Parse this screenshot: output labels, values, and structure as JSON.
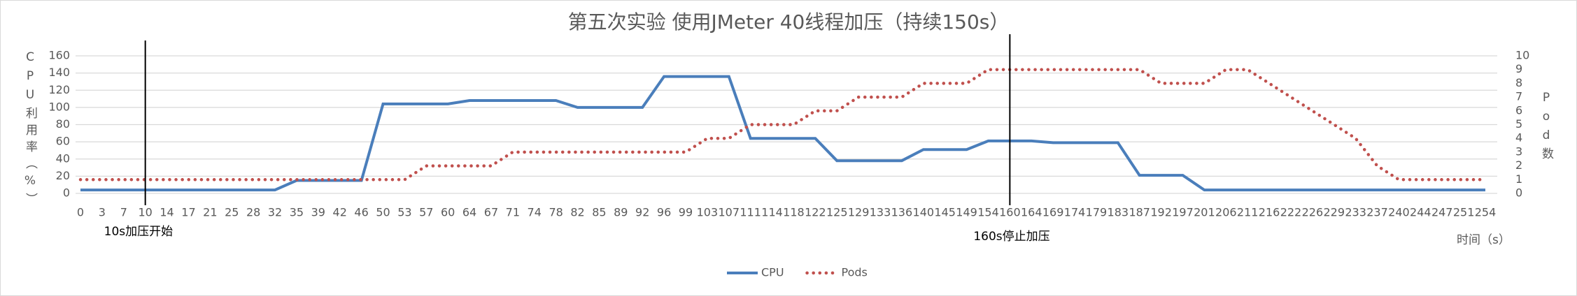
{
  "chart_data": {
    "type": "line",
    "title": "第五次实验 使用JMeter 40线程加压（持续150s）",
    "y_label": "CPU利用率（%）",
    "y2_label": "Pod数",
    "x_label": "时间（s）",
    "categories": [
      "0",
      "3",
      "7",
      "10",
      "14",
      "17",
      "21",
      "25",
      "28",
      "32",
      "35",
      "39",
      "42",
      "46",
      "50",
      "53",
      "57",
      "60",
      "64",
      "67",
      "71",
      "74",
      "78",
      "82",
      "85",
      "89",
      "92",
      "96",
      "99",
      "103",
      "107",
      "111",
      "114",
      "118",
      "122",
      "125",
      "129",
      "133",
      "136",
      "140",
      "145",
      "149",
      "154",
      "160",
      "164",
      "169",
      "174",
      "179",
      "183",
      "187",
      "192",
      "197",
      "201",
      "206",
      "211",
      "216",
      "222",
      "226",
      "229",
      "233",
      "237",
      "240",
      "244",
      "247",
      "251",
      "254"
    ],
    "series": [
      {
        "name": "CPU",
        "color": "#4a7ebb",
        "values": [
          4,
          4,
          4,
          4,
          4,
          4,
          4,
          4,
          4,
          4,
          15,
          15,
          15,
          15,
          104,
          104,
          104,
          104,
          108,
          108,
          108,
          108,
          108,
          100,
          100,
          100,
          100,
          136,
          136,
          136,
          136,
          64,
          64,
          64,
          64,
          38,
          38,
          38,
          38,
          51,
          51,
          51,
          61,
          61,
          61,
          59,
          59,
          59,
          59,
          21,
          21,
          21,
          4,
          4,
          4,
          4,
          4,
          4,
          4,
          4,
          4,
          4,
          4,
          4,
          4,
          4
        ]
      },
      {
        "name": "Pods",
        "color": "#c0504d",
        "axis": "y2",
        "values": [
          1,
          1,
          1,
          1,
          1,
          1,
          1,
          1,
          1,
          1,
          1,
          1,
          1,
          1,
          1,
          1,
          2,
          2,
          2,
          2,
          3,
          3,
          3,
          3,
          3,
          3,
          3,
          3,
          3,
          4,
          4,
          5,
          5,
          5,
          6,
          6,
          7,
          7,
          7,
          8,
          8,
          8,
          9,
          9,
          9,
          9,
          9,
          9,
          9,
          9,
          8,
          8,
          8,
          9,
          9,
          8,
          7,
          6,
          5,
          4,
          2,
          1,
          1,
          1,
          1,
          1
        ]
      }
    ],
    "ylim": [
      0,
      160
    ],
    "yticks": [
      0,
      20,
      40,
      60,
      80,
      100,
      120,
      140,
      160
    ],
    "y2lim": [
      0,
      10
    ],
    "y2ticks": [
      0,
      1,
      2,
      3,
      4,
      5,
      6,
      7,
      8,
      9,
      10
    ],
    "grid": true,
    "legend": "bottom",
    "annotations": [
      {
        "text": "10s加压开始",
        "x": "10"
      },
      {
        "text": "160s停止加压",
        "x": "160"
      }
    ]
  }
}
